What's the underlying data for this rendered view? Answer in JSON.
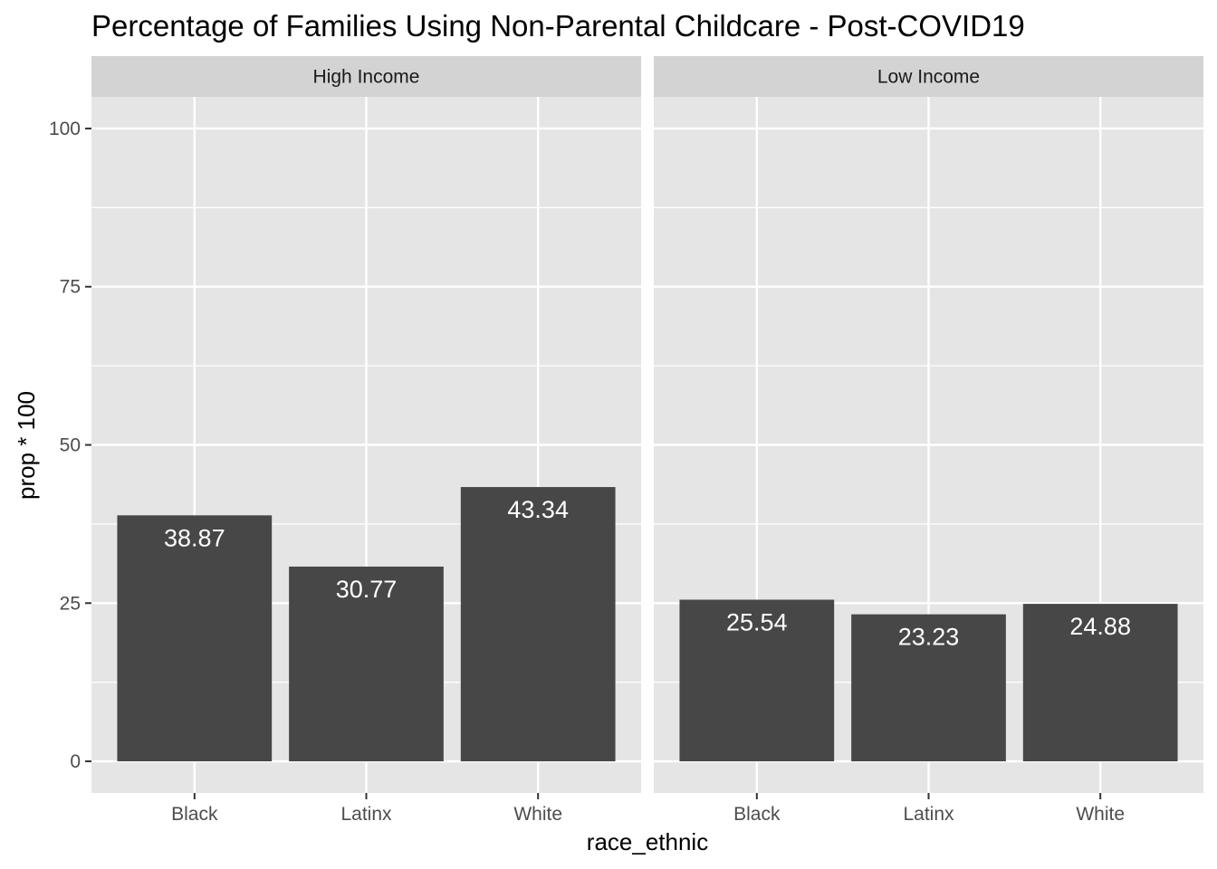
{
  "chart_data": {
    "type": "bar",
    "title": "Percentage of Families Using Non-Parental Childcare - Post-COVID19",
    "xlabel": "race_ethnic",
    "ylabel": "prop * 100",
    "ylim": [
      -5,
      105
    ],
    "yticks": [
      0,
      25,
      50,
      75,
      100
    ],
    "grid": true,
    "bar_color": "#474747",
    "panel_background": "#e5e5e5",
    "strip_background": "#d3d3d3",
    "categories": [
      "Black",
      "Latinx",
      "White"
    ],
    "facets": [
      {
        "name": "High Income",
        "values": [
          38.87,
          30.77,
          43.34
        ],
        "labels": [
          "38.87",
          "30.77",
          "43.34"
        ]
      },
      {
        "name": "Low Income",
        "values": [
          25.54,
          23.23,
          24.88
        ],
        "labels": [
          "25.54",
          "23.23",
          "24.88"
        ]
      }
    ]
  }
}
